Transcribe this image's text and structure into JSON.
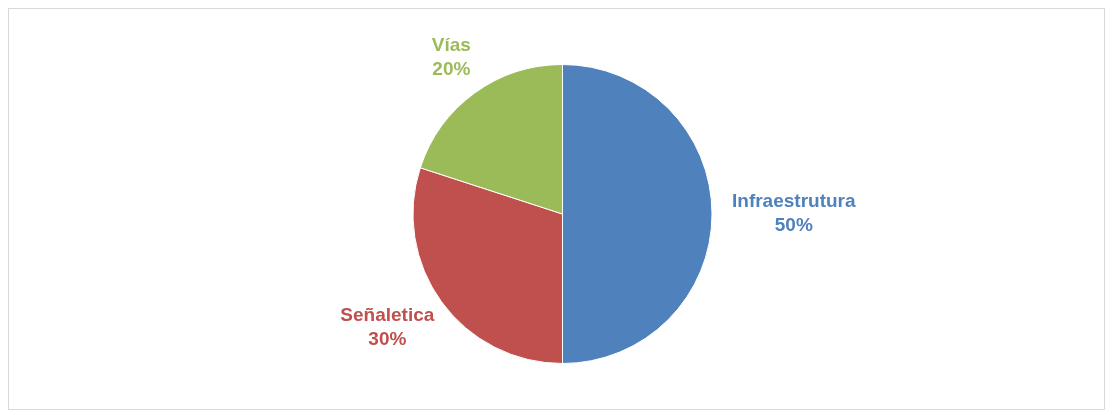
{
  "chart_data": {
    "type": "pie",
    "categories": [
      "Infraestrutura",
      "Señaletica",
      "Vías"
    ],
    "values": [
      50,
      30,
      20
    ],
    "colors": [
      "#4f81bd",
      "#c0504d",
      "#9bbb59"
    ],
    "value_labels": [
      "50%",
      "30%",
      "20%"
    ],
    "legend": false
  }
}
